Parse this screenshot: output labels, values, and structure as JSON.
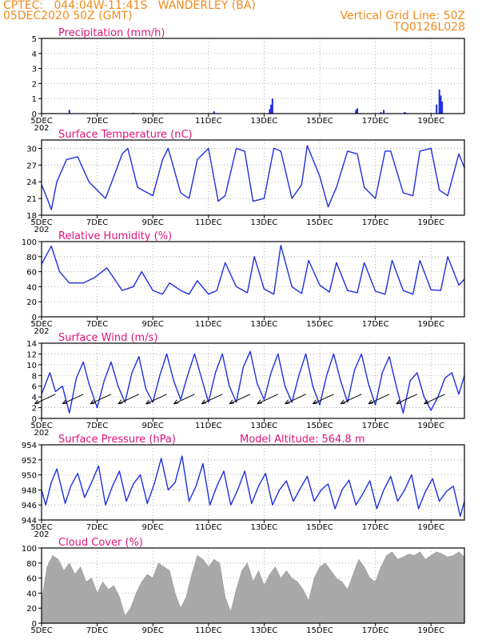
{
  "header": {
    "line1_left": "CPTEC:   044:04W-11:41S   WANDERLEY (BA)",
    "line2_left": "05DEC2020 50Z (GMT)",
    "line2_right": "Vertical Grid Line: 50Z",
    "line3_right": "TQ0126L028"
  },
  "x_tick_labels": [
    "5DEC",
    "7DEC",
    "9DEC",
    "11DEC",
    "13DEC",
    "15DEC",
    "17DEC",
    "19DEC"
  ],
  "x_year_fragment": "202",
  "colors": {
    "header": "#f08a1c",
    "title": "#e0127c",
    "line": "#1f2fe0",
    "cloud": "#a9a9a9"
  },
  "panels": [
    {
      "id": "precipitation",
      "title": "Precipitation (mm/h)",
      "yticks": [
        "0",
        "1",
        "2",
        "3",
        "4",
        "5"
      ]
    },
    {
      "id": "temperature",
      "title": "Surface Temperature (nC)",
      "yticks": [
        "18",
        "21",
        "24",
        "27",
        "30"
      ]
    },
    {
      "id": "humidity",
      "title": "Relative Humidity (%)",
      "yticks": [
        "0",
        "20",
        "40",
        "60",
        "80",
        "100"
      ]
    },
    {
      "id": "wind",
      "title": "Surface Wind (m/s)",
      "yticks": [
        "0",
        "2",
        "4",
        "6",
        "8",
        "10",
        "12",
        "14"
      ]
    },
    {
      "id": "pressure",
      "title": "Surface Pressure (hPa)",
      "extra_label": "Model Altitude: 564.8 m",
      "yticks": [
        "944",
        "946",
        "948",
        "950",
        "952",
        "954"
      ]
    },
    {
      "id": "cloud",
      "title": "Cloud Cover (%)",
      "yticks": [
        "0",
        "20",
        "40",
        "60",
        "80",
        "100"
      ]
    }
  ],
  "chart_data": [
    {
      "type": "bar",
      "title": "Precipitation (mm/h)",
      "x_unit": "days since 05DEC",
      "ylim": [
        0,
        5
      ],
      "x": [
        1.0,
        3.3,
        6.2,
        8.2,
        8.25,
        8.3,
        11.3,
        11.35,
        12.2,
        12.3,
        13.05,
        13.1,
        14.2,
        14.3,
        14.35,
        14.4
      ],
      "values": [
        0.25,
        0.05,
        0.15,
        0.3,
        0.6,
        1.0,
        0.25,
        0.35,
        0.1,
        0.25,
        0.1,
        0.05,
        0.6,
        1.6,
        1.2,
        0.8
      ]
    },
    {
      "type": "line",
      "title": "Surface Temperature (nC)",
      "x_unit": "days since 05DEC",
      "ylim": [
        18,
        31.5
      ],
      "x": [
        0,
        0.2,
        0.35,
        0.55,
        0.9,
        1.3,
        1.7,
        2.3,
        2.6,
        2.9,
        3.1,
        3.45,
        4.0,
        4.35,
        4.55,
        5.0,
        5.3,
        5.6,
        6.0,
        6.35,
        6.6,
        7.0,
        7.3,
        7.6,
        8.0,
        8.35,
        8.6,
        9.0,
        9.35,
        9.55,
        10.0,
        10.3,
        10.6,
        11.0,
        11.35,
        11.6,
        12.0,
        12.35,
        12.55,
        13.0,
        13.35,
        13.6,
        14.0,
        14.3,
        14.6,
        15.0,
        15.2
      ],
      "values": [
        23.5,
        21.0,
        19.0,
        24.0,
        28.0,
        28.5,
        24.0,
        21.0,
        25.0,
        29.0,
        30.0,
        23.0,
        21.5,
        28.0,
        30.0,
        22.0,
        21.0,
        28.0,
        30.0,
        20.5,
        21.5,
        30.0,
        29.5,
        20.5,
        21.0,
        30.0,
        29.5,
        21.0,
        23.5,
        30.5,
        25.0,
        19.5,
        23.0,
        29.5,
        29.0,
        23.0,
        21.0,
        29.5,
        29.5,
        22.0,
        21.5,
        29.5,
        30.0,
        22.5,
        21.5,
        29.0,
        26.5
      ]
    },
    {
      "type": "line",
      "title": "Relative Humidity (%)",
      "x_unit": "days since 05DEC",
      "ylim": [
        0,
        100
      ],
      "x": [
        0,
        0.35,
        0.65,
        1.0,
        1.5,
        1.9,
        2.35,
        2.9,
        3.3,
        3.6,
        4.0,
        4.35,
        4.6,
        5.0,
        5.3,
        5.6,
        6.0,
        6.3,
        6.6,
        7.0,
        7.4,
        7.65,
        8.0,
        8.35,
        8.6,
        9.0,
        9.35,
        9.6,
        10.0,
        10.35,
        10.6,
        11.0,
        11.35,
        11.6,
        12.0,
        12.35,
        12.6,
        13.0,
        13.35,
        13.6,
        14.0,
        14.35,
        14.6,
        15.0,
        15.2
      ],
      "values": [
        70,
        94,
        60,
        45,
        45,
        52,
        65,
        35,
        40,
        60,
        35,
        30,
        45,
        35,
        30,
        48,
        30,
        35,
        72,
        40,
        32,
        80,
        37,
        30,
        95,
        40,
        31,
        75,
        42,
        33,
        72,
        35,
        32,
        72,
        34,
        30,
        75,
        35,
        30,
        75,
        36,
        35,
        80,
        42,
        50
      ]
    },
    {
      "type": "line",
      "title": "Surface Wind (m/s)",
      "x_unit": "days since 05DEC",
      "ylim": [
        0,
        14
      ],
      "x": [
        0,
        0.3,
        0.5,
        0.75,
        1.0,
        1.25,
        1.5,
        1.7,
        2.0,
        2.25,
        2.5,
        2.75,
        3.0,
        3.25,
        3.5,
        3.75,
        4.0,
        4.25,
        4.5,
        4.75,
        5.0,
        5.25,
        5.5,
        5.75,
        6.0,
        6.25,
        6.5,
        6.75,
        7.0,
        7.25,
        7.5,
        7.75,
        8.0,
        8.25,
        8.5,
        8.75,
        9.0,
        9.25,
        9.5,
        9.75,
        10.0,
        10.25,
        10.5,
        10.75,
        11.0,
        11.25,
        11.5,
        11.75,
        12.0,
        12.25,
        12.5,
        12.75,
        13.0,
        13.25,
        13.5,
        13.75,
        14.0,
        14.25,
        14.5,
        14.75,
        15.0,
        15.2
      ],
      "values": [
        4.5,
        8.5,
        5.0,
        6.0,
        1.0,
        7.5,
        10.5,
        6.5,
        2.0,
        7.0,
        10.5,
        6.0,
        3.0,
        8.5,
        11.5,
        5.5,
        3.0,
        8.0,
        12.0,
        7.0,
        3.5,
        8.0,
        12.0,
        7.5,
        3.0,
        8.5,
        12.0,
        6.0,
        3.0,
        9.5,
        12.5,
        6.5,
        3.5,
        8.5,
        12.0,
        6.0,
        3.0,
        8.0,
        12.0,
        6.0,
        2.5,
        8.0,
        12.0,
        7.0,
        3.0,
        9.0,
        12.0,
        6.5,
        2.5,
        8.5,
        11.5,
        6.0,
        1.0,
        7.0,
        8.5,
        4.0,
        1.5,
        4.0,
        7.5,
        8.5,
        4.5,
        8.0
      ]
    },
    {
      "type": "line",
      "title": "Surface Pressure (hPa)",
      "x_unit": "days since 05DEC",
      "ylim": [
        944,
        954
      ],
      "x": [
        0,
        0.15,
        0.35,
        0.55,
        0.85,
        1.05,
        1.3,
        1.55,
        1.8,
        2.05,
        2.3,
        2.55,
        2.8,
        3.05,
        3.3,
        3.55,
        3.8,
        4.05,
        4.3,
        4.55,
        4.8,
        5.05,
        5.3,
        5.55,
        5.8,
        6.05,
        6.3,
        6.55,
        6.8,
        7.05,
        7.3,
        7.55,
        7.8,
        8.05,
        8.3,
        8.55,
        8.8,
        9.05,
        9.3,
        9.55,
        9.8,
        10.05,
        10.3,
        10.55,
        10.8,
        11.05,
        11.3,
        11.55,
        11.8,
        12.05,
        12.3,
        12.55,
        12.8,
        13.05,
        13.3,
        13.55,
        13.8,
        14.05,
        14.3,
        14.55,
        14.8,
        15.05,
        15.2
      ],
      "values": [
        948,
        946,
        949,
        950.8,
        946.2,
        948.5,
        950.2,
        947,
        949,
        951.2,
        946,
        948.5,
        950.5,
        946.5,
        948.8,
        950,
        946.2,
        948.8,
        952.2,
        948,
        949,
        952.5,
        946.5,
        948.5,
        951.5,
        946,
        948.5,
        950.5,
        946,
        948,
        950.5,
        946.2,
        948.5,
        950.2,
        946,
        948,
        949.2,
        946.5,
        948.2,
        949.8,
        946.5,
        948,
        948.8,
        945.5,
        948,
        949.3,
        946,
        947.5,
        949.2,
        945.5,
        948,
        949.8,
        946.5,
        948,
        950,
        945.5,
        947.8,
        949.5,
        946.5,
        947.8,
        948.5,
        944.5,
        946.5
      ]
    },
    {
      "type": "area",
      "title": "Cloud Cover (%)",
      "x_unit": "days since 05DEC",
      "ylim": [
        0,
        100
      ],
      "x": [
        0,
        0.2,
        0.4,
        0.6,
        0.8,
        1.0,
        1.2,
        1.4,
        1.6,
        1.8,
        2.0,
        2.2,
        2.4,
        2.6,
        2.8,
        3.0,
        3.2,
        3.4,
        3.6,
        3.8,
        4.0,
        4.2,
        4.4,
        4.6,
        4.8,
        5.0,
        5.2,
        5.4,
        5.6,
        5.8,
        6.0,
        6.2,
        6.4,
        6.6,
        6.8,
        7.0,
        7.2,
        7.4,
        7.6,
        7.8,
        8.0,
        8.2,
        8.4,
        8.6,
        8.8,
        9.0,
        9.2,
        9.4,
        9.6,
        9.8,
        10.0,
        10.2,
        10.4,
        10.6,
        10.8,
        11.0,
        11.2,
        11.4,
        11.6,
        11.8,
        12.0,
        12.2,
        12.4,
        12.6,
        12.8,
        13.0,
        13.2,
        13.4,
        13.6,
        13.8,
        14.0,
        14.2,
        14.4,
        14.6,
        14.8,
        15.0,
        15.2
      ],
      "values": [
        30,
        75,
        90,
        85,
        70,
        80,
        65,
        75,
        55,
        60,
        40,
        55,
        45,
        50,
        35,
        10,
        20,
        40,
        55,
        65,
        60,
        80,
        75,
        70,
        40,
        20,
        35,
        65,
        90,
        85,
        75,
        85,
        80,
        35,
        15,
        45,
        70,
        80,
        55,
        70,
        50,
        65,
        75,
        60,
        70,
        60,
        55,
        45,
        30,
        60,
        75,
        80,
        70,
        60,
        55,
        45,
        65,
        85,
        75,
        60,
        55,
        75,
        90,
        95,
        85,
        88,
        92,
        90,
        95,
        85,
        90,
        95,
        92,
        88,
        90,
        95,
        88
      ]
    }
  ]
}
